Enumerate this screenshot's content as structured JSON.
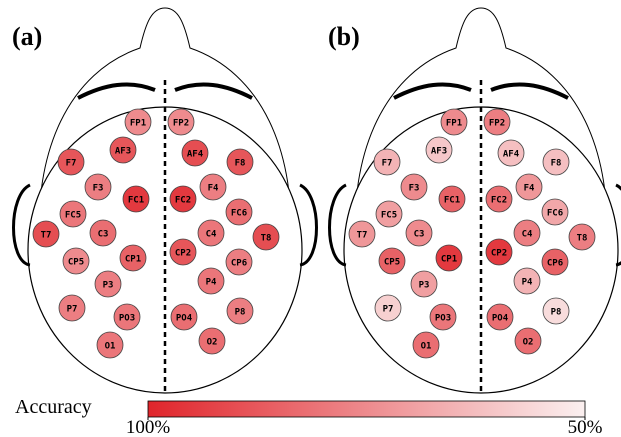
{
  "chart_data": [
    {
      "type": "topomap",
      "title": "(a)",
      "electrodes": [
        {
          "label": "FP1",
          "value": 75
        },
        {
          "label": "FP2",
          "value": 75
        },
        {
          "label": "AF3",
          "value": 88
        },
        {
          "label": "AF4",
          "value": 90
        },
        {
          "label": "F7",
          "value": 88
        },
        {
          "label": "F8",
          "value": 88
        },
        {
          "label": "F3",
          "value": 78
        },
        {
          "label": "F4",
          "value": 78
        },
        {
          "label": "FC1",
          "value": 95
        },
        {
          "label": "FC2",
          "value": 95
        },
        {
          "label": "FC5",
          "value": 80
        },
        {
          "label": "FC6",
          "value": 82
        },
        {
          "label": "T7",
          "value": 90
        },
        {
          "label": "T8",
          "value": 90
        },
        {
          "label": "C3",
          "value": 82
        },
        {
          "label": "C4",
          "value": 80
        },
        {
          "label": "CP1",
          "value": 85
        },
        {
          "label": "CP2",
          "value": 88
        },
        {
          "label": "CP5",
          "value": 75
        },
        {
          "label": "CP6",
          "value": 78
        },
        {
          "label": "P3",
          "value": 78
        },
        {
          "label": "P4",
          "value": 80
        },
        {
          "label": "P7",
          "value": 78
        },
        {
          "label": "P8",
          "value": 78
        },
        {
          "label": "PO3",
          "value": 80
        },
        {
          "label": "PO4",
          "value": 82
        },
        {
          "label": "O1",
          "value": 80
        },
        {
          "label": "O2",
          "value": 82
        }
      ]
    },
    {
      "type": "topomap",
      "title": "(b)",
      "electrodes": [
        {
          "label": "FP1",
          "value": 75
        },
        {
          "label": "FP2",
          "value": 78
        },
        {
          "label": "AF3",
          "value": 60
        },
        {
          "label": "AF4",
          "value": 62
        },
        {
          "label": "F7",
          "value": 65
        },
        {
          "label": "F8",
          "value": 62
        },
        {
          "label": "F3",
          "value": 75
        },
        {
          "label": "F4",
          "value": 72
        },
        {
          "label": "FC1",
          "value": 85
        },
        {
          "label": "FC2",
          "value": 82
        },
        {
          "label": "FC5",
          "value": 70
        },
        {
          "label": "FC6",
          "value": 68
        },
        {
          "label": "T7",
          "value": 72
        },
        {
          "label": "T8",
          "value": 78
        },
        {
          "label": "C3",
          "value": 75
        },
        {
          "label": "C4",
          "value": 78
        },
        {
          "label": "CP1",
          "value": 95
        },
        {
          "label": "CP2",
          "value": 95
        },
        {
          "label": "CP5",
          "value": 85
        },
        {
          "label": "CP6",
          "value": 85
        },
        {
          "label": "P3",
          "value": 70
        },
        {
          "label": "P4",
          "value": 65
        },
        {
          "label": "P7",
          "value": 58
        },
        {
          "label": "P8",
          "value": 55
        },
        {
          "label": "PO3",
          "value": 80
        },
        {
          "label": "PO4",
          "value": 82
        },
        {
          "label": "O1",
          "value": 82
        },
        {
          "label": "O2",
          "value": 82
        }
      ]
    }
  ],
  "colorbar": {
    "title": "Accuracy",
    "lim": [
      100,
      50
    ],
    "colors": [
      "#e0252b",
      "#fbf0f0"
    ],
    "ticks": [
      {
        "value": 100,
        "label": "100%"
      },
      {
        "value": 50,
        "label": "50%"
      }
    ]
  }
}
